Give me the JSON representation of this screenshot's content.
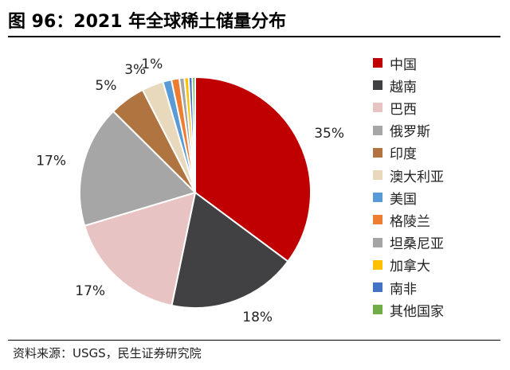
{
  "header": {
    "title": "图 96：2021 年全球稀土储量分布"
  },
  "footer": {
    "source": "资料来源：USGS，民生证券研究院"
  },
  "chart_data": {
    "type": "pie",
    "title": "2021 年全球稀土储量分布",
    "slices": [
      {
        "name": "中国",
        "value": 35,
        "label": "35%",
        "color": "#c00000"
      },
      {
        "name": "越南",
        "value": 18,
        "label": "18%",
        "color": "#414042"
      },
      {
        "name": "巴西",
        "value": 17,
        "label": "17%",
        "color": "#e8c3c3"
      },
      {
        "name": "俄罗斯",
        "value": 17,
        "label": "17%",
        "color": "#a6a6a6"
      },
      {
        "name": "印度",
        "value": 5,
        "label": "5%",
        "color": "#b07440"
      },
      {
        "name": "澳大利亚",
        "value": 3,
        "label": "3%",
        "color": "#e8d9bd"
      },
      {
        "name": "美国",
        "value": 1.2,
        "label": "1%",
        "color": "#5b9bd5"
      },
      {
        "name": "格陵兰",
        "value": 1.1,
        "label": "",
        "color": "#ed7d31"
      },
      {
        "name": "坦桑尼亚",
        "value": 0.7,
        "label": "",
        "color": "#a5a5a5"
      },
      {
        "name": "加拿大",
        "value": 0.6,
        "label": "",
        "color": "#ffc000"
      },
      {
        "name": "南非",
        "value": 0.5,
        "label": "",
        "color": "#4472c4"
      },
      {
        "name": "其他国家",
        "value": 0.4,
        "label": "",
        "color": "#70ad47"
      }
    ],
    "legend_position": "right"
  }
}
